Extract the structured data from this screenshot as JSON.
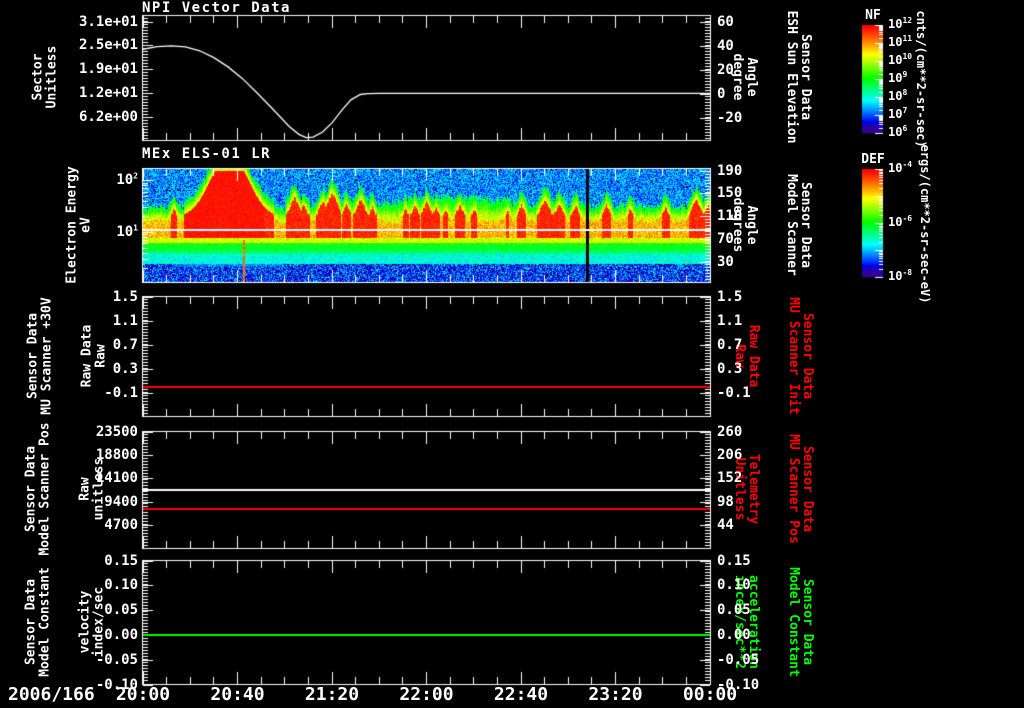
{
  "app": {
    "background": "#000000",
    "axis_color": "#ffffff",
    "red": "#ff0000",
    "green": "#00ff00"
  },
  "bottom_axis": {
    "date_label": "2006/166",
    "tick_labels": [
      "20:00",
      "20:40",
      "21:20",
      "22:00",
      "22:40",
      "23:20",
      "00:00"
    ],
    "minutes": [
      0,
      40,
      80,
      120,
      160,
      200,
      240
    ]
  },
  "colorbars": [
    {
      "title": "NF",
      "unit": "cnts/(cm**2-sr-sec)",
      "scale": "log",
      "tick_labels": [
        "10^12",
        "10^11",
        "10^10",
        "10^9",
        "10^8",
        "10^7",
        "10^6"
      ],
      "tick_exponents": [
        12,
        11,
        10,
        9,
        8,
        7,
        6
      ]
    },
    {
      "title": "DEF",
      "unit": "ergs/(cm**2-sr-sec-eV)",
      "scale": "log",
      "tick_labels": [
        "10^-4",
        "10^-6",
        "10^-8"
      ],
      "tick_exponents": [
        -4,
        -6,
        -8
      ]
    }
  ],
  "chart_data": [
    {
      "type": "line",
      "title": "NPI Vector Data",
      "left_axis": {
        "label_lines": [
          "Sector",
          "Unitless"
        ],
        "color": "#ffffff",
        "tick_labels": [
          "3.1e+01",
          "2.5e+01",
          "1.9e+01",
          "1.2e+01",
          "6.2e+00"
        ],
        "tick_values": [
          31,
          24.8,
          18.6,
          12.4,
          6.2
        ],
        "ylim": [
          0,
          32.6
        ]
      },
      "right_axis": {
        "label_lines": [
          "Sensor Data",
          "ESH Sun Elevation",
          "Angle",
          "degree"
        ],
        "color": "#ffffff",
        "tick_labels": [
          "60",
          "40",
          "20",
          "0",
          "-20"
        ],
        "tick_values": [
          60,
          40,
          20,
          0,
          -20
        ],
        "ylim": [
          -39,
          65
        ]
      },
      "series": [
        {
          "name": "Sector",
          "color": "#ffffff",
          "axis": "left",
          "x_minutes": [
            0,
            6,
            12,
            18,
            24,
            30,
            36,
            42,
            48,
            54,
            58,
            62,
            66,
            69,
            72,
            76,
            80,
            84,
            88,
            92,
            95,
            100,
            240
          ],
          "values": [
            23.8,
            24.5,
            24.7,
            24.4,
            23.4,
            21.6,
            19.2,
            16.2,
            12.6,
            8.8,
            6.2,
            3.6,
            1.6,
            0.75,
            0.9,
            2.2,
            4.6,
            7.8,
            10.6,
            12.0,
            12.25,
            12.3,
            12.3
          ]
        }
      ]
    },
    {
      "type": "heatmap",
      "title": "MEx ELS-01 LR",
      "left_axis": {
        "label_lines": [
          "Electron Energy",
          "eV"
        ],
        "color": "#ffffff",
        "scale": "log",
        "tick_labels": [
          "10^2",
          "10^1"
        ],
        "tick_values": [
          100,
          10
        ],
        "ylim": [
          1.05,
          170
        ]
      },
      "right_axis": {
        "label_lines": [
          "Sensor Data",
          "Model Scanner",
          "Angle",
          "degrees"
        ],
        "color": "#ffffff",
        "tick_labels": [
          "190",
          "150",
          "110",
          "70",
          "30"
        ],
        "tick_values": [
          190,
          150,
          110,
          70,
          30
        ],
        "ylim": [
          -5.6,
          193.5
        ]
      },
      "colorbar": "DEF",
      "overlay_line": {
        "color": "#ffffff",
        "energy_eV": 13.5
      },
      "features": {
        "description": "turbulent electron flux spectrogram, persistent bright band 8-35 eV",
        "blob_minutes": [
          17,
          51
        ],
        "blob_saturated_minutes": [
          31,
          42
        ],
        "flames": [
          [
            13,
            36
          ],
          [
            64,
            24
          ],
          [
            68,
            32
          ],
          [
            76,
            28
          ],
          [
            80,
            20
          ],
          [
            86,
            32
          ],
          [
            92,
            26
          ],
          [
            97,
            34
          ],
          [
            111,
            36
          ],
          [
            115,
            32
          ],
          [
            120,
            28
          ],
          [
            124,
            34
          ],
          [
            128,
            38
          ],
          [
            134,
            32
          ],
          [
            140,
            36
          ],
          [
            154,
            38
          ],
          [
            160,
            32
          ],
          [
            170,
            26
          ],
          [
            176,
            30
          ],
          [
            183,
            32
          ],
          [
            196,
            32
          ],
          [
            206,
            36
          ],
          [
            221,
            34
          ],
          [
            234,
            26
          ],
          [
            239,
            32
          ]
        ],
        "data_gap_minute": 188,
        "dropout_minute": 42.5
      }
    },
    {
      "type": "line",
      "title": "",
      "left_axis": {
        "label_lines": [
          "Sensor Data",
          "MU Scanner +30V",
          "Raw Data",
          "Raw"
        ],
        "color": "#ffffff",
        "tick_labels": [
          "1.5",
          "1.1",
          "0.7",
          "0.3",
          "-0.1"
        ],
        "tick_values": [
          1.5,
          1.1,
          0.7,
          0.3,
          -0.1
        ],
        "ylim": [
          -0.5,
          1.5
        ]
      },
      "right_axis": {
        "label_lines": [
          "Sensor Data",
          "MU Scanner Init",
          "Raw Data",
          "Raw"
        ],
        "color": "#ff0000",
        "tick_labels": [
          "1.5",
          "1.1",
          "0.7",
          "0.3",
          "-0.1"
        ],
        "tick_values": [
          1.5,
          1.1,
          0.7,
          0.3,
          -0.1
        ],
        "ylim": [
          -0.5,
          1.5
        ]
      },
      "series": [
        {
          "name": "MU Scanner Init Raw",
          "color": "#ff0000",
          "axis": "left",
          "constant": 0.0
        }
      ]
    },
    {
      "type": "line",
      "title": "",
      "left_axis": {
        "label_lines": [
          "Sensor Data",
          "Model Scanner Pos",
          "Raw",
          "unitless"
        ],
        "color": "#ffffff",
        "tick_labels": [
          "23500",
          "18800",
          "14100",
          "9400",
          "4700"
        ],
        "tick_values": [
          23500,
          18800,
          14100,
          9400,
          4700
        ],
        "ylim": [
          0,
          23500
        ]
      },
      "right_axis": {
        "label_lines": [
          "Sensor Data",
          "MU Scanner Pos",
          "Telemetry",
          "Unitless"
        ],
        "color": "#ff0000",
        "tick_labels": [
          "260",
          "206",
          "152",
          "98",
          "44"
        ],
        "tick_values": [
          260,
          206,
          152,
          98,
          44
        ],
        "ylim": [
          -10,
          260
        ]
      },
      "series": [
        {
          "name": "Model Scanner Pos Raw",
          "color": "#ffffff",
          "axis": "left",
          "constant": 11650
        },
        {
          "name": "MU Scanner Pos Telemetry",
          "color": "#ff0000",
          "axis": "right",
          "constant": 82
        }
      ]
    },
    {
      "type": "line",
      "title": "",
      "left_axis": {
        "label_lines": [
          "Sensor Data",
          "Model Constant",
          "velocity",
          "index/sec"
        ],
        "color": "#ffffff",
        "tick_labels": [
          "0.15",
          "0.10",
          "0.05",
          "0.00",
          "-0.05",
          "-0.10"
        ],
        "tick_values": [
          0.15,
          0.1,
          0.05,
          0.0,
          -0.05,
          -0.1
        ],
        "ylim": [
          -0.1,
          0.15
        ]
      },
      "right_axis": {
        "label_lines": [
          "Sensor Data",
          "Model Constant",
          "acceleration",
          "incex/sec**2"
        ],
        "color": "#00ff00",
        "tick_labels": [
          "0.15",
          "0.10",
          "0.05",
          "0.00",
          "-0.05",
          "-0.10"
        ],
        "tick_values": [
          0.15,
          0.1,
          0.05,
          0.0,
          -0.05,
          -0.1
        ],
        "ylim": [
          -0.1,
          0.15
        ]
      },
      "series": [
        {
          "name": "Model Constant acceleration",
          "color": "#00ff00",
          "axis": "left",
          "constant": 0.0
        }
      ]
    }
  ]
}
